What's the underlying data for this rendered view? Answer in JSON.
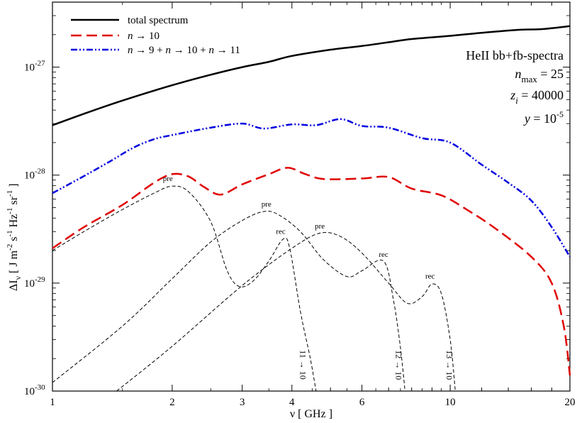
{
  "chart_data": {
    "type": "line",
    "xscale": "log",
    "yscale": "log",
    "xlim": [
      1,
      20
    ],
    "ylim": [
      1e-30,
      4e-27
    ],
    "xlabel": "ν [ GHz ]",
    "ylabel": "ΔI_ν [ J m^-2 s^-1 Hz^-1 sr^-1 ]",
    "x_ticks": [
      {
        "value": 1,
        "label": "1"
      },
      {
        "value": 2,
        "label": "2"
      },
      {
        "value": 3,
        "label": "3"
      },
      {
        "value": 4,
        "label": "4"
      },
      {
        "value": 6,
        "label": "6"
      },
      {
        "value": 10,
        "label": "10"
      },
      {
        "value": 20,
        "label": "20"
      }
    ],
    "y_ticks": [
      {
        "value": 1e-30,
        "mantissa": "10",
        "exponent": "-30"
      },
      {
        "value": 1e-29,
        "mantissa": "10",
        "exponent": "-29"
      },
      {
        "value": 1e-28,
        "mantissa": "10",
        "exponent": "-28"
      },
      {
        "value": 1e-27,
        "mantissa": "10",
        "exponent": "-27"
      }
    ],
    "legend": [
      {
        "label": "total spectrum",
        "color": "#000000",
        "style": "solid"
      },
      {
        "label": "n → 10",
        "color": "#e00000",
        "style": "dashed"
      },
      {
        "label": "n → 9 + n → 10 + n → 11",
        "color": "#0000e0",
        "style": "dash-dot-dot"
      }
    ],
    "info": {
      "title": "HeII bb+fb-spectra",
      "nmax": "n_max = 25",
      "zi": "z_i = 40000",
      "y": "y = 10^-5"
    },
    "series": [
      {
        "name": "total spectrum",
        "color": "#000000",
        "style": "solid",
        "points": [
          [
            1,
            2.9e-28
          ],
          [
            1.2,
            3.7e-28
          ],
          [
            1.5,
            4.9e-28
          ],
          [
            2,
            6.8e-28
          ],
          [
            2.5,
            8.5e-28
          ],
          [
            3,
            1e-27
          ],
          [
            3.5,
            1.12e-27
          ],
          [
            4,
            1.27e-27
          ],
          [
            5,
            1.45e-27
          ],
          [
            6,
            1.57e-27
          ],
          [
            7,
            1.7e-27
          ],
          [
            8,
            1.82e-27
          ],
          [
            10,
            1.95e-27
          ],
          [
            12,
            2.08e-27
          ],
          [
            15,
            2.22e-27
          ],
          [
            17,
            2.25e-27
          ],
          [
            20,
            2.4e-27
          ]
        ]
      },
      {
        "name": "n → 9 + n → 10 + n → 11",
        "color": "#0000e0",
        "style": "dash-dot-dot",
        "points": [
          [
            1,
            6.8e-29
          ],
          [
            1.2,
            9.8e-29
          ],
          [
            1.4,
            1.35e-28
          ],
          [
            1.6,
            1.8e-28
          ],
          [
            1.8,
            2.15e-28
          ],
          [
            2,
            2.35e-28
          ],
          [
            2.5,
            2.75e-28
          ],
          [
            3,
            3e-28
          ],
          [
            3.4,
            2.7e-28
          ],
          [
            4,
            2.95e-28
          ],
          [
            4.6,
            2.9e-28
          ],
          [
            5.3,
            3.3e-28
          ],
          [
            6,
            2.85e-28
          ],
          [
            7,
            2.75e-28
          ],
          [
            8.5,
            2.2e-28
          ],
          [
            10,
            2e-28
          ],
          [
            12,
            1.25e-28
          ],
          [
            14,
            8.5e-29
          ],
          [
            16,
            5.8e-29
          ],
          [
            18,
            3.3e-29
          ],
          [
            20,
            1.75e-29
          ]
        ]
      },
      {
        "name": "n → 10",
        "color": "#e00000",
        "style": "dashed",
        "points": [
          [
            1,
            2.1e-29
          ],
          [
            1.2,
            3.3e-29
          ],
          [
            1.5,
            5.3e-29
          ],
          [
            1.8,
            8.5e-29
          ],
          [
            2,
            1.02e-28
          ],
          [
            2.2,
            9.7e-29
          ],
          [
            2.4,
            7.8e-29
          ],
          [
            2.65,
            6.6e-29
          ],
          [
            3,
            8.2e-29
          ],
          [
            3.5,
            1.02e-28
          ],
          [
            3.9,
            1.17e-28
          ],
          [
            4.3,
            1.03e-28
          ],
          [
            4.8,
            9.2e-29
          ],
          [
            6,
            9.3e-29
          ],
          [
            7,
            9.6e-29
          ],
          [
            8,
            7.5e-29
          ],
          [
            9.5,
            6.5e-29
          ],
          [
            11,
            4.8e-29
          ],
          [
            13,
            3.2e-29
          ],
          [
            16,
            1.75e-29
          ],
          [
            18,
            1e-29
          ],
          [
            19.3,
            4e-30
          ],
          [
            20,
            1.4e-30
          ]
        ]
      },
      {
        "name": "11 → 10",
        "color": "#000000",
        "style": "thin-dashed",
        "points": [
          [
            1,
            2e-29
          ],
          [
            1.2,
            3e-29
          ],
          [
            1.5,
            4.8e-29
          ],
          [
            1.8,
            6.8e-29
          ],
          [
            2,
            7.9e-29
          ],
          [
            2.2,
            7e-29
          ],
          [
            2.5,
            3.7e-29
          ],
          [
            2.75,
            1.3e-29
          ],
          [
            2.95,
            9.3e-30
          ],
          [
            3.2,
            1.05e-29
          ],
          [
            3.5,
            1.6e-29
          ],
          [
            3.8,
            2.55e-29
          ],
          [
            3.95,
            2.1e-29
          ],
          [
            4.2,
            5.5e-30
          ],
          [
            4.45,
            2e-30
          ],
          [
            4.6,
            1e-30
          ]
        ]
      },
      {
        "name": "12 → 10",
        "color": "#000000",
        "style": "thin-dashed",
        "points": [
          [
            1,
            1.2e-30
          ],
          [
            1.5,
            4e-30
          ],
          [
            2,
            1.1e-29
          ],
          [
            2.5,
            2.4e-29
          ],
          [
            3,
            3.8e-29
          ],
          [
            3.4,
            4.6e-29
          ],
          [
            3.7,
            4.3e-29
          ],
          [
            4.2,
            3e-29
          ],
          [
            4.8,
            1.65e-29
          ],
          [
            5.5,
            1.15e-29
          ],
          [
            6,
            1.3e-29
          ],
          [
            6.8,
            1.6e-29
          ],
          [
            7.2,
            7e-30
          ],
          [
            7.5,
            2.5e-30
          ],
          [
            7.7,
            1e-30
          ]
        ]
      },
      {
        "name": "13 → 10",
        "color": "#000000",
        "style": "thin-dashed",
        "points": [
          [
            1.45,
            1e-30
          ],
          [
            2,
            2.6e-30
          ],
          [
            3,
            9.5e-30
          ],
          [
            4,
            2.1e-29
          ],
          [
            4.7,
            2.9e-29
          ],
          [
            5.3,
            2.7e-29
          ],
          [
            6,
            1.9e-29
          ],
          [
            7,
            1e-29
          ],
          [
            7.8,
            6.5e-30
          ],
          [
            8.5,
            7.5e-30
          ],
          [
            9,
            9.8e-30
          ],
          [
            9.5,
            8e-30
          ],
          [
            10,
            3e-30
          ],
          [
            10.3,
            1e-30
          ]
        ]
      }
    ],
    "annotations": [
      {
        "text": "pre",
        "x": 1.95,
        "y": 8.8e-29,
        "kind": "peak"
      },
      {
        "text": "pre",
        "x": 3.45,
        "y": 5.1e-29,
        "kind": "peak"
      },
      {
        "text": "rec",
        "x": 3.75,
        "y": 2.85e-29,
        "kind": "peak"
      },
      {
        "text": "pre",
        "x": 4.7,
        "y": 3.2e-29,
        "kind": "peak"
      },
      {
        "text": "rec",
        "x": 6.8,
        "y": 1.75e-29,
        "kind": "peak"
      },
      {
        "text": "rec",
        "x": 8.9,
        "y": 1.1e-29,
        "kind": "peak"
      },
      {
        "text": "11 → 10",
        "x": 4.2,
        "y": 2.4e-30,
        "kind": "transition"
      },
      {
        "text": "12 → 10",
        "x": 7.3,
        "y": 2.4e-30,
        "kind": "transition"
      },
      {
        "text": "13 → 10",
        "x": 9.8,
        "y": 2.4e-30,
        "kind": "transition"
      }
    ]
  }
}
